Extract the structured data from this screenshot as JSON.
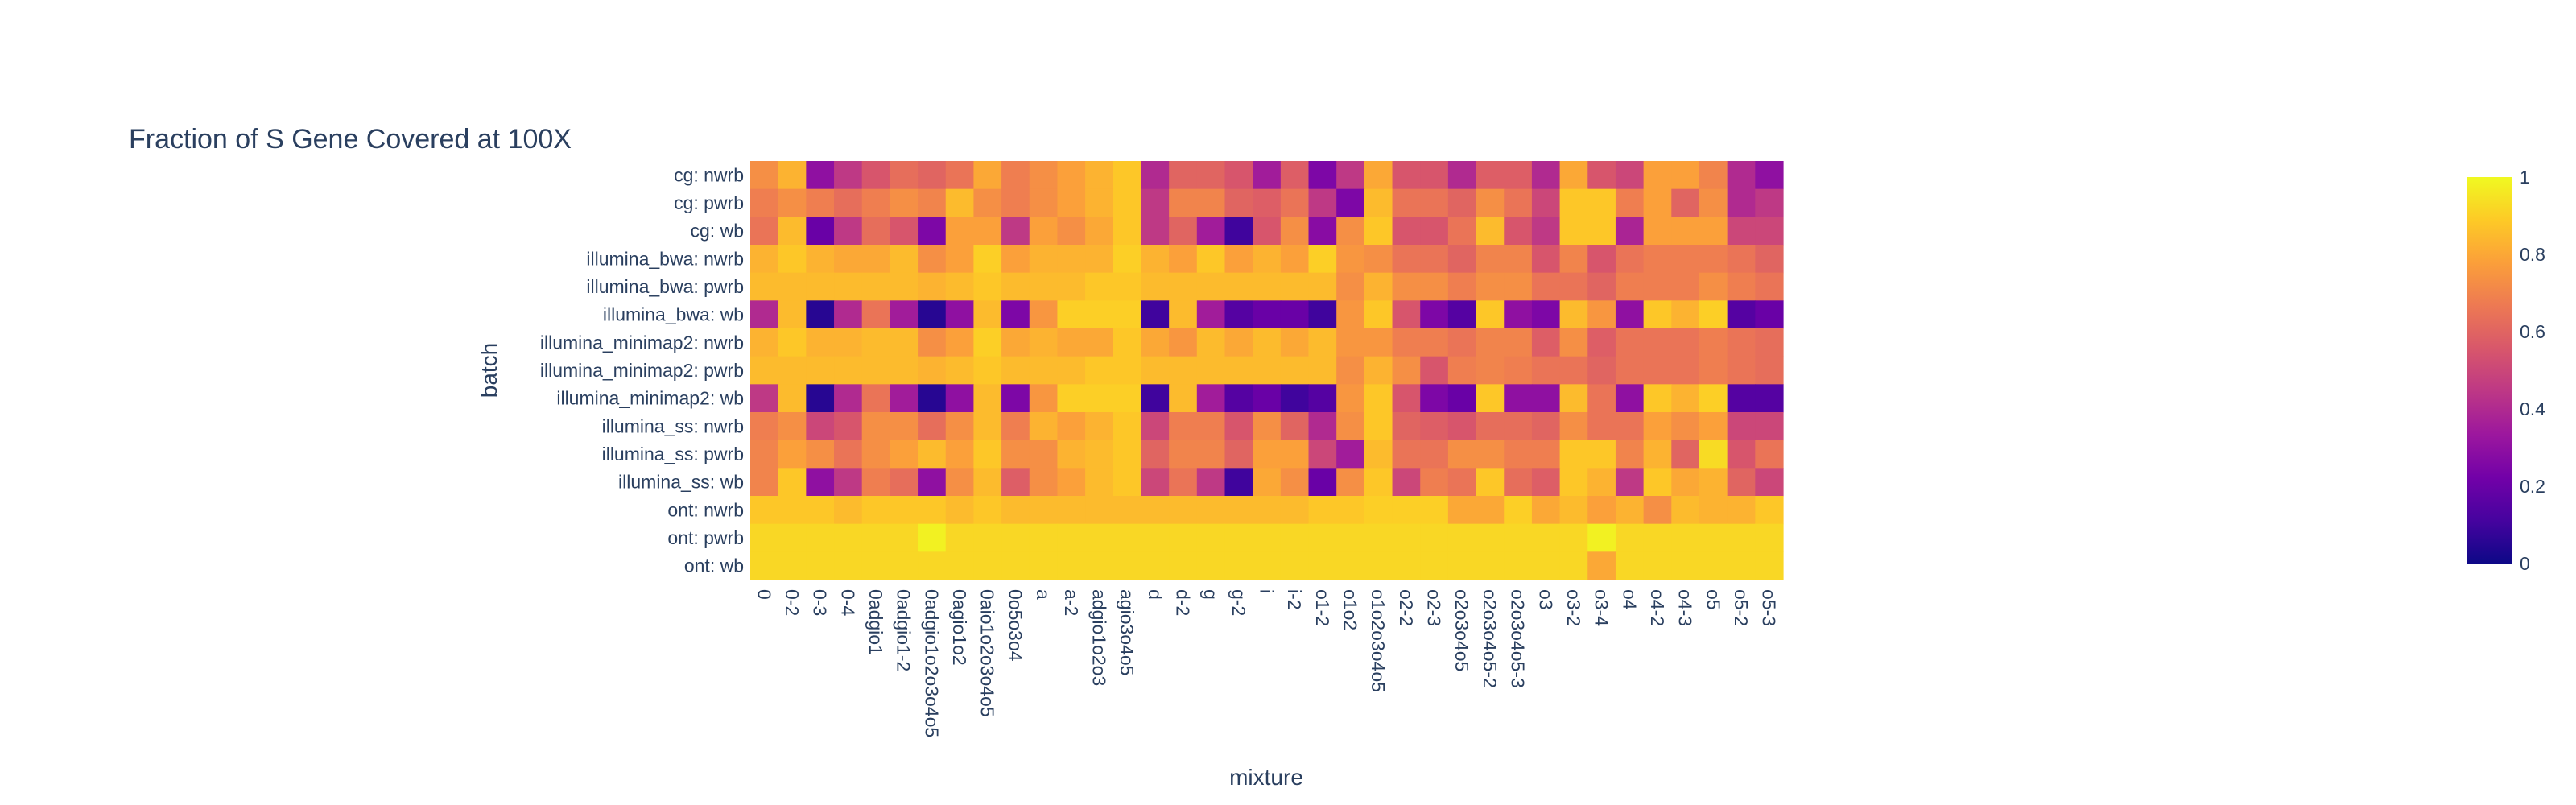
{
  "chart_data": {
    "type": "heatmap",
    "title": "Fraction of S Gene Covered at 100X",
    "xlabel": "mixture",
    "ylabel": "batch",
    "x": [
      "0",
      "0-2",
      "0-3",
      "0-4",
      "0adgio1",
      "0adgio1-2",
      "0adgio1o2o3o4o5",
      "0agio1o2",
      "0aio1o2o3o4o5",
      "0o5o3o4",
      "a",
      "a-2",
      "adgio1o2o3",
      "agio3o4o5",
      "d",
      "d-2",
      "g",
      "g-2",
      "i",
      "i-2",
      "o1-2",
      "o1o2",
      "o1o2o3o4o5",
      "o2-2",
      "o2-3",
      "o2o3o4o5",
      "o2o3o4o5-2",
      "o2o3o4o5-3",
      "o3",
      "o3-2",
      "o3-4",
      "o4",
      "o4-2",
      "o4-3",
      "o5",
      "o5-2",
      "o5-3"
    ],
    "x_ticks_shown": [
      "0",
      "0-2",
      "0-3",
      "0-4",
      "0adgio1",
      "0adgio1-2",
      "0adgio1o2o3o4o5",
      "0agio1o2",
      "0aio1o2o3o4o5",
      "0o5o3o4",
      "a",
      "a-2",
      "adgio1o2o3",
      "agio3o4o5",
      "d",
      "d-2",
      "g",
      "g-2",
      "i",
      "i-2",
      "o1-2",
      "o1o2",
      "o1o2o3o4o5",
      "o2-2",
      "o2-3",
      "o2o3o4o5",
      "o2o3o4o5-2",
      "o2o3o4o5-3",
      "o3",
      "o3-2",
      "o3-4",
      "o4",
      "o4-2",
      "o4-3",
      "o5",
      "o5-2",
      "o5-3"
    ],
    "y": [
      "cg: nwrb",
      "cg: pwrb",
      "cg: wb",
      "illumina_bwa: nwrb",
      "illumina_bwa: pwrb",
      "illumina_bwa: wb",
      "illumina_minimap2: nwrb",
      "illumina_minimap2: pwrb",
      "illumina_minimap2: wb",
      "illumina_ss: nwrb",
      "illumina_ss: pwrb",
      "illumina_ss: wb",
      "ont: nwrb",
      "ont: pwrb",
      "ont: wb"
    ],
    "z": [
      [
        0.73,
        0.83,
        0.3,
        0.45,
        0.55,
        0.63,
        0.6,
        0.65,
        0.8,
        0.68,
        0.73,
        0.78,
        0.83,
        0.88,
        0.4,
        0.6,
        0.6,
        0.55,
        0.35,
        0.58,
        0.25,
        0.45,
        0.8,
        0.55,
        0.55,
        0.4,
        0.58,
        0.58,
        0.4,
        0.8,
        0.55,
        0.5,
        0.78,
        0.78,
        0.7,
        0.4,
        0.3
      ],
      [
        0.68,
        0.73,
        0.68,
        0.63,
        0.68,
        0.73,
        0.7,
        0.85,
        0.73,
        0.68,
        0.73,
        0.78,
        0.83,
        0.88,
        0.45,
        0.7,
        0.7,
        0.6,
        0.58,
        0.65,
        0.45,
        0.25,
        0.85,
        0.65,
        0.65,
        0.6,
        0.73,
        0.65,
        0.5,
        0.88,
        0.88,
        0.68,
        0.78,
        0.6,
        0.73,
        0.4,
        0.45
      ],
      [
        0.65,
        0.85,
        0.2,
        0.45,
        0.63,
        0.55,
        0.25,
        0.78,
        0.78,
        0.45,
        0.78,
        0.73,
        0.8,
        0.88,
        0.45,
        0.6,
        0.35,
        0.1,
        0.55,
        0.73,
        0.28,
        0.73,
        0.88,
        0.55,
        0.55,
        0.65,
        0.85,
        0.55,
        0.45,
        0.88,
        0.88,
        0.38,
        0.78,
        0.78,
        0.78,
        0.5,
        0.5
      ],
      [
        0.83,
        0.88,
        0.83,
        0.8,
        0.8,
        0.85,
        0.73,
        0.78,
        0.9,
        0.78,
        0.83,
        0.83,
        0.83,
        0.9,
        0.83,
        0.78,
        0.88,
        0.78,
        0.83,
        0.78,
        0.9,
        0.75,
        0.73,
        0.65,
        0.65,
        0.6,
        0.7,
        0.7,
        0.55,
        0.7,
        0.55,
        0.65,
        0.68,
        0.68,
        0.68,
        0.65,
        0.6
      ],
      [
        0.85,
        0.85,
        0.85,
        0.85,
        0.85,
        0.85,
        0.83,
        0.85,
        0.88,
        0.85,
        0.85,
        0.85,
        0.88,
        0.88,
        0.85,
        0.85,
        0.85,
        0.85,
        0.85,
        0.85,
        0.85,
        0.73,
        0.83,
        0.73,
        0.73,
        0.68,
        0.73,
        0.73,
        0.65,
        0.65,
        0.6,
        0.68,
        0.68,
        0.68,
        0.73,
        0.68,
        0.65
      ],
      [
        0.4,
        0.85,
        0.05,
        0.4,
        0.65,
        0.35,
        0.05,
        0.3,
        0.85,
        0.25,
        0.75,
        0.9,
        0.9,
        0.9,
        0.1,
        0.85,
        0.35,
        0.15,
        0.2,
        0.2,
        0.1,
        0.75,
        0.88,
        0.55,
        0.25,
        0.15,
        0.88,
        0.3,
        0.25,
        0.85,
        0.75,
        0.3,
        0.88,
        0.83,
        0.9,
        0.15,
        0.2
      ],
      [
        0.83,
        0.88,
        0.83,
        0.83,
        0.85,
        0.85,
        0.73,
        0.78,
        0.9,
        0.8,
        0.83,
        0.8,
        0.8,
        0.88,
        0.8,
        0.75,
        0.85,
        0.8,
        0.85,
        0.8,
        0.85,
        0.75,
        0.75,
        0.68,
        0.68,
        0.65,
        0.7,
        0.7,
        0.58,
        0.73,
        0.58,
        0.65,
        0.65,
        0.65,
        0.68,
        0.65,
        0.63
      ],
      [
        0.85,
        0.85,
        0.85,
        0.85,
        0.85,
        0.85,
        0.83,
        0.85,
        0.88,
        0.85,
        0.85,
        0.85,
        0.88,
        0.88,
        0.85,
        0.85,
        0.85,
        0.85,
        0.85,
        0.85,
        0.85,
        0.73,
        0.83,
        0.73,
        0.55,
        0.68,
        0.7,
        0.68,
        0.65,
        0.65,
        0.6,
        0.65,
        0.65,
        0.65,
        0.68,
        0.65,
        0.63
      ],
      [
        0.45,
        0.85,
        0.05,
        0.4,
        0.65,
        0.35,
        0.05,
        0.3,
        0.85,
        0.25,
        0.75,
        0.9,
        0.9,
        0.9,
        0.1,
        0.85,
        0.35,
        0.15,
        0.2,
        0.1,
        0.15,
        0.75,
        0.88,
        0.55,
        0.25,
        0.2,
        0.88,
        0.3,
        0.3,
        0.85,
        0.65,
        0.3,
        0.88,
        0.83,
        0.9,
        0.15,
        0.15
      ],
      [
        0.68,
        0.73,
        0.5,
        0.55,
        0.73,
        0.73,
        0.63,
        0.73,
        0.85,
        0.68,
        0.83,
        0.78,
        0.83,
        0.88,
        0.5,
        0.68,
        0.68,
        0.55,
        0.73,
        0.6,
        0.4,
        0.73,
        0.88,
        0.6,
        0.58,
        0.55,
        0.63,
        0.63,
        0.6,
        0.73,
        0.65,
        0.65,
        0.78,
        0.73,
        0.78,
        0.5,
        0.5
      ],
      [
        0.7,
        0.78,
        0.73,
        0.65,
        0.73,
        0.78,
        0.85,
        0.78,
        0.88,
        0.73,
        0.73,
        0.83,
        0.85,
        0.88,
        0.6,
        0.7,
        0.7,
        0.6,
        0.78,
        0.78,
        0.5,
        0.35,
        0.85,
        0.65,
        0.65,
        0.73,
        0.73,
        0.68,
        0.68,
        0.88,
        0.88,
        0.7,
        0.83,
        0.6,
        0.93,
        0.55,
        0.65
      ],
      [
        0.7,
        0.88,
        0.3,
        0.45,
        0.68,
        0.63,
        0.3,
        0.73,
        0.85,
        0.58,
        0.73,
        0.78,
        0.85,
        0.88,
        0.5,
        0.65,
        0.45,
        0.1,
        0.8,
        0.73,
        0.2,
        0.73,
        0.88,
        0.5,
        0.68,
        0.65,
        0.88,
        0.63,
        0.58,
        0.88,
        0.83,
        0.45,
        0.88,
        0.8,
        0.83,
        0.6,
        0.5
      ],
      [
        0.88,
        0.88,
        0.88,
        0.85,
        0.88,
        0.88,
        0.88,
        0.85,
        0.88,
        0.85,
        0.85,
        0.85,
        0.85,
        0.85,
        0.85,
        0.85,
        0.85,
        0.85,
        0.85,
        0.85,
        0.88,
        0.88,
        0.9,
        0.9,
        0.9,
        0.8,
        0.8,
        0.9,
        0.8,
        0.85,
        0.78,
        0.83,
        0.73,
        0.85,
        0.83,
        0.83,
        0.88
      ],
      [
        0.92,
        0.92,
        0.92,
        0.92,
        0.92,
        0.92,
        0.98,
        0.92,
        0.92,
        0.92,
        0.92,
        0.92,
        0.92,
        0.92,
        0.92,
        0.92,
        0.92,
        0.92,
        0.92,
        0.92,
        0.92,
        0.92,
        0.92,
        0.92,
        0.92,
        0.92,
        0.92,
        0.92,
        0.92,
        0.92,
        0.98,
        0.92,
        0.92,
        0.92,
        0.92,
        0.92,
        0.92
      ],
      [
        0.92,
        0.92,
        0.92,
        0.92,
        0.92,
        0.92,
        0.92,
        0.92,
        0.92,
        0.92,
        0.92,
        0.92,
        0.92,
        0.92,
        0.92,
        0.92,
        0.92,
        0.92,
        0.92,
        0.92,
        0.92,
        0.92,
        0.92,
        0.92,
        0.92,
        0.92,
        0.92,
        0.92,
        0.92,
        0.92,
        0.8,
        0.92,
        0.92,
        0.92,
        0.92,
        0.92,
        0.92
      ]
    ],
    "zmin": 0,
    "zmax": 1,
    "colorscale": "plasma",
    "colorbar_ticks": [
      "0",
      "0.2",
      "0.4",
      "0.6",
      "0.8",
      "1"
    ],
    "colorbar_tick_values": [
      0,
      0.2,
      0.4,
      0.6,
      0.8,
      1
    ],
    "colorscale_stops": [
      "#0d0887",
      "#46039f",
      "#7201a8",
      "#9c179e",
      "#bd3786",
      "#d8576b",
      "#ed7953",
      "#fb9f3a",
      "#fdca26",
      "#f0f921"
    ]
  }
}
